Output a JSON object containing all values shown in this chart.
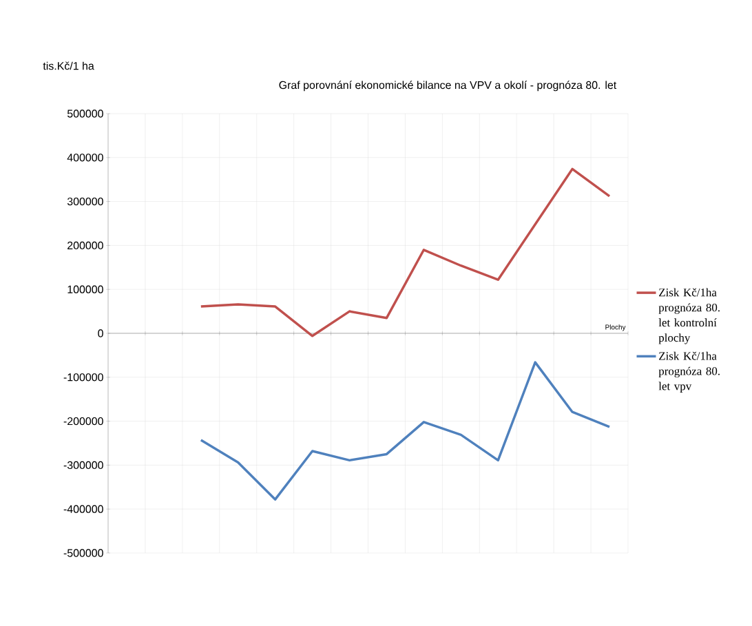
{
  "chart_data": {
    "type": "line",
    "title": "Graf porovnání ekonomické bilance na VPV a okolí - prognóza 80. let",
    "xlabel": "Plochy",
    "ylabel": "tis.Kč/1 ha",
    "categories": [
      null,
      null,
      null,
      null,
      null,
      null,
      null,
      null,
      null,
      null,
      null,
      null,
      null,
      null
    ],
    "series": [
      {
        "name": "Zisk Kč/1ha prognóza 80. let kontrolní plochy",
        "color": "#c0504d",
        "values": [
          null,
          null,
          61000,
          66000,
          61000,
          -6000,
          50000,
          35000,
          190000,
          154000,
          122000,
          248000,
          374000,
          312000
        ]
      },
      {
        "name": "Zisk Kč/1ha prognóza 80. let vpv",
        "color": "#4f81bd",
        "values": [
          null,
          null,
          -243000,
          -294000,
          -378000,
          -268000,
          -289000,
          -275000,
          -202000,
          -231000,
          -289000,
          -66000,
          -179000,
          -213000
        ]
      }
    ],
    "ylim": [
      -500000,
      500000
    ],
    "yticks": [
      -500000,
      -400000,
      -300000,
      -200000,
      -100000,
      0,
      100000,
      200000,
      300000,
      400000,
      500000
    ],
    "grid": true,
    "legend": "right"
  }
}
